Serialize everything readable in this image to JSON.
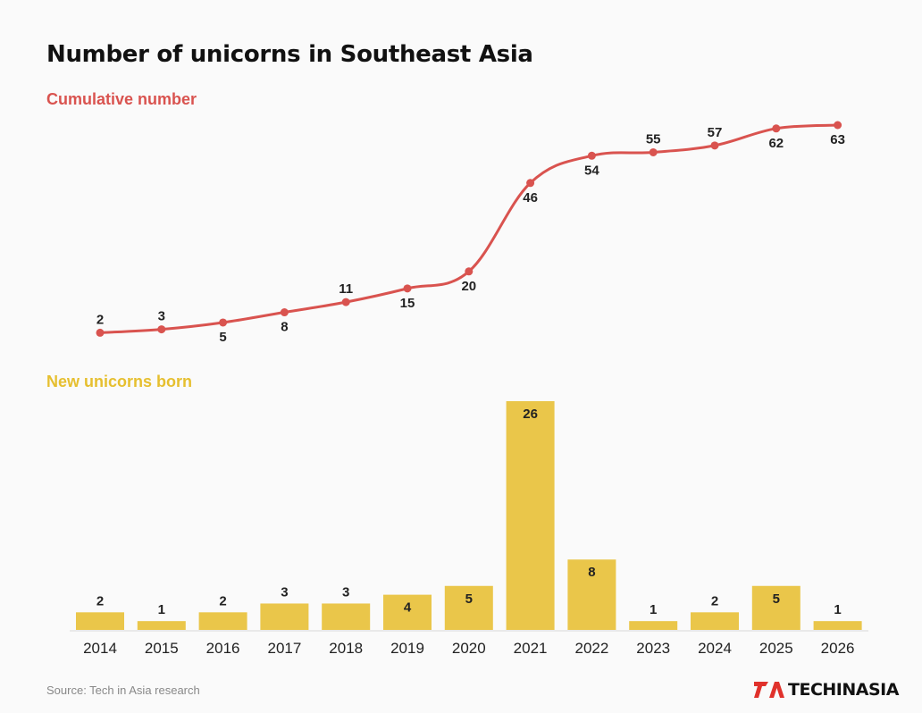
{
  "title": "Number of unicorns in Southeast Asia",
  "source": "Source: Tech in Asia research",
  "logo": {
    "text": "TECHINASIA",
    "mark": "TIA"
  },
  "colors": {
    "line": "#d9534f",
    "bar": "#eac64a",
    "barLabel": "#e6bf2f",
    "text": "#222222"
  },
  "chart_data": [
    {
      "type": "line",
      "title": "Cumulative number",
      "x": [
        "2014",
        "2015",
        "2016",
        "2017",
        "2018",
        "2019",
        "2020",
        "2021",
        "2022",
        "2023",
        "2024",
        "2025",
        "2026"
      ],
      "values": [
        2,
        3,
        5,
        8,
        11,
        15,
        20,
        46,
        54,
        55,
        57,
        62,
        63
      ],
      "ylim": [
        0,
        63
      ],
      "grid": false
    },
    {
      "type": "bar",
      "title": "New unicorns born",
      "categories": [
        "2014",
        "2015",
        "2016",
        "2017",
        "2018",
        "2019",
        "2020",
        "2021",
        "2022",
        "2023",
        "2024",
        "2025",
        "2026"
      ],
      "values": [
        2,
        1,
        2,
        3,
        3,
        4,
        5,
        26,
        8,
        1,
        2,
        5,
        1
      ],
      "ylim": [
        0,
        26
      ],
      "grid": false
    }
  ]
}
